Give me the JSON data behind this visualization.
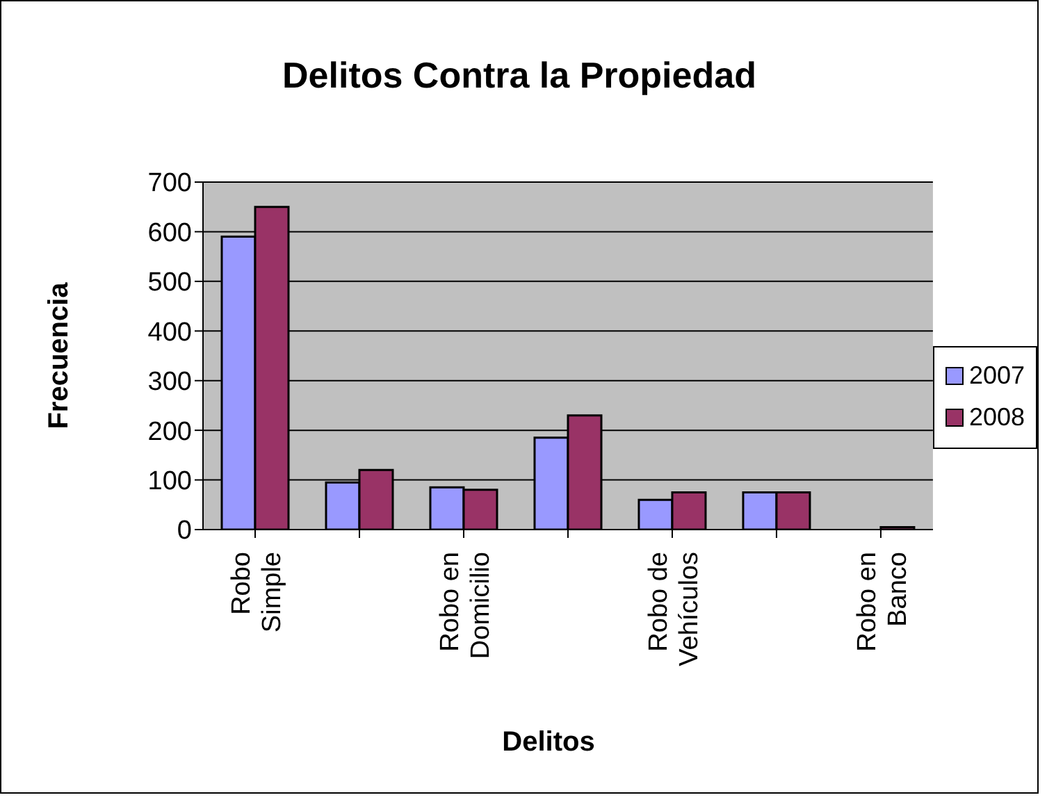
{
  "chart_data": {
    "type": "bar",
    "title": "Delitos Contra la Propiedad",
    "xlabel": "Delitos",
    "ylabel": "Frecuencia",
    "categories": [
      "Robo Simple",
      null,
      "Robo en Domicilio",
      null,
      "Robo de Vehículos",
      null,
      "Robo en Banco"
    ],
    "series": [
      {
        "name": "2007",
        "color": "#9999ff",
        "values": [
          590,
          95,
          85,
          185,
          60,
          75,
          0
        ]
      },
      {
        "name": "2008",
        "color": "#993366",
        "values": [
          650,
          120,
          80,
          230,
          75,
          75,
          5
        ]
      }
    ],
    "ylim": [
      0,
      700
    ],
    "yticks": [
      0,
      100,
      200,
      300,
      400,
      500,
      600,
      700
    ],
    "grid": "y",
    "legend": "right"
  }
}
